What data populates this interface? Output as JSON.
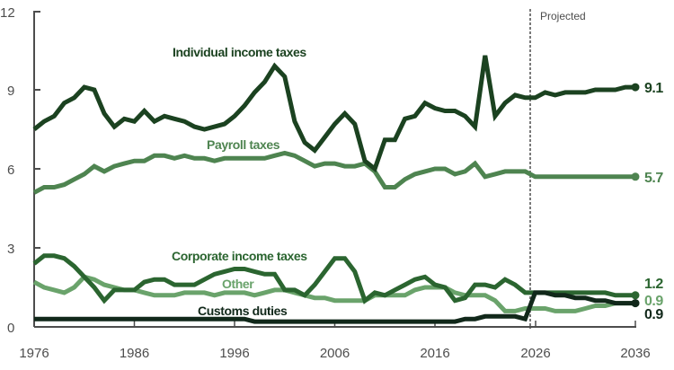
{
  "chart_data": {
    "type": "line",
    "title": "",
    "xlabel": "",
    "ylabel": "",
    "ylim": [
      0,
      12
    ],
    "xlim": [
      1976,
      2036
    ],
    "yticks": [
      0,
      3,
      6,
      9,
      12
    ],
    "xticks": [
      1976,
      1986,
      1996,
      2006,
      2016,
      2026,
      2036
    ],
    "grid": false,
    "legend": "inline labels",
    "projection_start": 2025.5,
    "projection_label": "Projected",
    "x": [
      1976,
      1977,
      1978,
      1979,
      1980,
      1981,
      1982,
      1983,
      1984,
      1985,
      1986,
      1987,
      1988,
      1989,
      1990,
      1991,
      1992,
      1993,
      1994,
      1995,
      1996,
      1997,
      1998,
      1999,
      2000,
      2001,
      2002,
      2003,
      2004,
      2005,
      2006,
      2007,
      2008,
      2009,
      2010,
      2011,
      2012,
      2013,
      2014,
      2015,
      2016,
      2017,
      2018,
      2019,
      2020,
      2021,
      2022,
      2023,
      2024,
      2025,
      2026,
      2027,
      2028,
      2029,
      2030,
      2031,
      2032,
      2033,
      2034,
      2035,
      2036
    ],
    "series": [
      {
        "name": "Individual income taxes",
        "color": "#1b4220",
        "end_value": 9.1,
        "values": [
          7.5,
          7.8,
          8.0,
          8.5,
          8.7,
          9.1,
          9.0,
          8.1,
          7.6,
          7.9,
          7.8,
          8.2,
          7.8,
          8.0,
          7.9,
          7.8,
          7.6,
          7.5,
          7.6,
          7.7,
          8.0,
          8.4,
          8.9,
          9.3,
          9.9,
          9.5,
          7.8,
          7.0,
          6.7,
          7.2,
          7.7,
          8.1,
          7.7,
          6.3,
          6.0,
          7.1,
          7.1,
          7.9,
          8.0,
          8.5,
          8.3,
          8.2,
          8.2,
          8.0,
          7.6,
          10.3,
          8.0,
          8.5,
          8.8,
          8.7,
          8.7,
          8.9,
          8.8,
          8.9,
          8.9,
          8.9,
          9.0,
          9.0,
          9.0,
          9.1,
          9.1
        ]
      },
      {
        "name": "Payroll taxes",
        "color": "#4e8450",
        "end_value": 5.7,
        "values": [
          5.1,
          5.3,
          5.3,
          5.4,
          5.6,
          5.8,
          6.1,
          5.9,
          6.1,
          6.2,
          6.3,
          6.3,
          6.5,
          6.5,
          6.4,
          6.5,
          6.4,
          6.4,
          6.3,
          6.4,
          6.4,
          6.4,
          6.4,
          6.4,
          6.5,
          6.6,
          6.5,
          6.3,
          6.1,
          6.2,
          6.2,
          6.1,
          6.1,
          6.2,
          5.9,
          5.3,
          5.3,
          5.6,
          5.8,
          5.9,
          6.0,
          6.0,
          5.8,
          5.9,
          6.2,
          5.7,
          5.8,
          5.9,
          5.9,
          5.9,
          5.7,
          5.7,
          5.7,
          5.7,
          5.7,
          5.7,
          5.7,
          5.7,
          5.7,
          5.7,
          5.7
        ]
      },
      {
        "name": "Corporate income taxes",
        "color": "#2b6530",
        "end_value": 1.2,
        "values": [
          2.4,
          2.7,
          2.7,
          2.6,
          2.3,
          1.9,
          1.5,
          1.0,
          1.4,
          1.4,
          1.4,
          1.7,
          1.8,
          1.8,
          1.6,
          1.6,
          1.6,
          1.8,
          2.0,
          2.1,
          2.2,
          2.2,
          2.1,
          2.0,
          2.0,
          1.4,
          1.4,
          1.2,
          1.6,
          2.1,
          2.6,
          2.6,
          2.1,
          1.0,
          1.3,
          1.2,
          1.4,
          1.6,
          1.8,
          1.9,
          1.6,
          1.5,
          1.0,
          1.1,
          1.6,
          1.6,
          1.5,
          1.8,
          1.6,
          1.3,
          1.3,
          1.3,
          1.3,
          1.3,
          1.3,
          1.3,
          1.3,
          1.3,
          1.2,
          1.2,
          1.2
        ]
      },
      {
        "name": "Other",
        "color": "#6aa36b",
        "end_value": 0.9,
        "values": [
          1.7,
          1.5,
          1.4,
          1.3,
          1.5,
          1.9,
          1.8,
          1.6,
          1.5,
          1.4,
          1.4,
          1.3,
          1.2,
          1.2,
          1.2,
          1.3,
          1.3,
          1.3,
          1.2,
          1.3,
          1.3,
          1.3,
          1.2,
          1.3,
          1.4,
          1.4,
          1.3,
          1.2,
          1.1,
          1.1,
          1.0,
          1.0,
          1.0,
          1.0,
          1.2,
          1.2,
          1.2,
          1.2,
          1.4,
          1.5,
          1.5,
          1.5,
          1.3,
          1.2,
          1.2,
          1.2,
          1.0,
          0.6,
          0.6,
          0.7,
          0.7,
          0.7,
          0.6,
          0.6,
          0.6,
          0.7,
          0.8,
          0.8,
          0.9,
          0.9,
          0.9
        ]
      },
      {
        "name": "Customs duties",
        "color": "#11281a",
        "end_value": 0.9,
        "values": [
          0.3,
          0.3,
          0.3,
          0.3,
          0.3,
          0.3,
          0.3,
          0.3,
          0.3,
          0.3,
          0.3,
          0.3,
          0.3,
          0.3,
          0.3,
          0.3,
          0.3,
          0.3,
          0.3,
          0.3,
          0.3,
          0.3,
          0.2,
          0.2,
          0.2,
          0.2,
          0.2,
          0.2,
          0.2,
          0.2,
          0.2,
          0.2,
          0.2,
          0.2,
          0.2,
          0.2,
          0.2,
          0.2,
          0.2,
          0.2,
          0.2,
          0.2,
          0.2,
          0.3,
          0.3,
          0.4,
          0.4,
          0.4,
          0.4,
          0.3,
          1.3,
          1.3,
          1.2,
          1.2,
          1.1,
          1.1,
          1.0,
          1.0,
          0.9,
          0.9,
          0.9
        ]
      }
    ],
    "annotations": [
      {
        "text": "Individual income taxes",
        "series": 0
      },
      {
        "text": "Payroll taxes",
        "series": 1
      },
      {
        "text": "Corporate income taxes",
        "series": 2
      },
      {
        "text": "Other",
        "series": 3
      },
      {
        "text": "Customs duties",
        "series": 4
      }
    ]
  },
  "labels": {
    "individual": "Individual income taxes",
    "payroll": "Payroll taxes",
    "corporate": "Corporate income taxes",
    "other": "Other",
    "customs": "Customs duties",
    "projected": "Projected",
    "end_individual": "9.1",
    "end_payroll": "5.7",
    "end_corporate": "1.2",
    "end_other": "0.9",
    "end_customs": "0.9"
  },
  "axes": {
    "y_ticks": [
      "0",
      "3",
      "6",
      "9",
      "12"
    ],
    "x_ticks": [
      "1976",
      "1986",
      "1996",
      "2006",
      "2016",
      "2026",
      "2036"
    ]
  }
}
